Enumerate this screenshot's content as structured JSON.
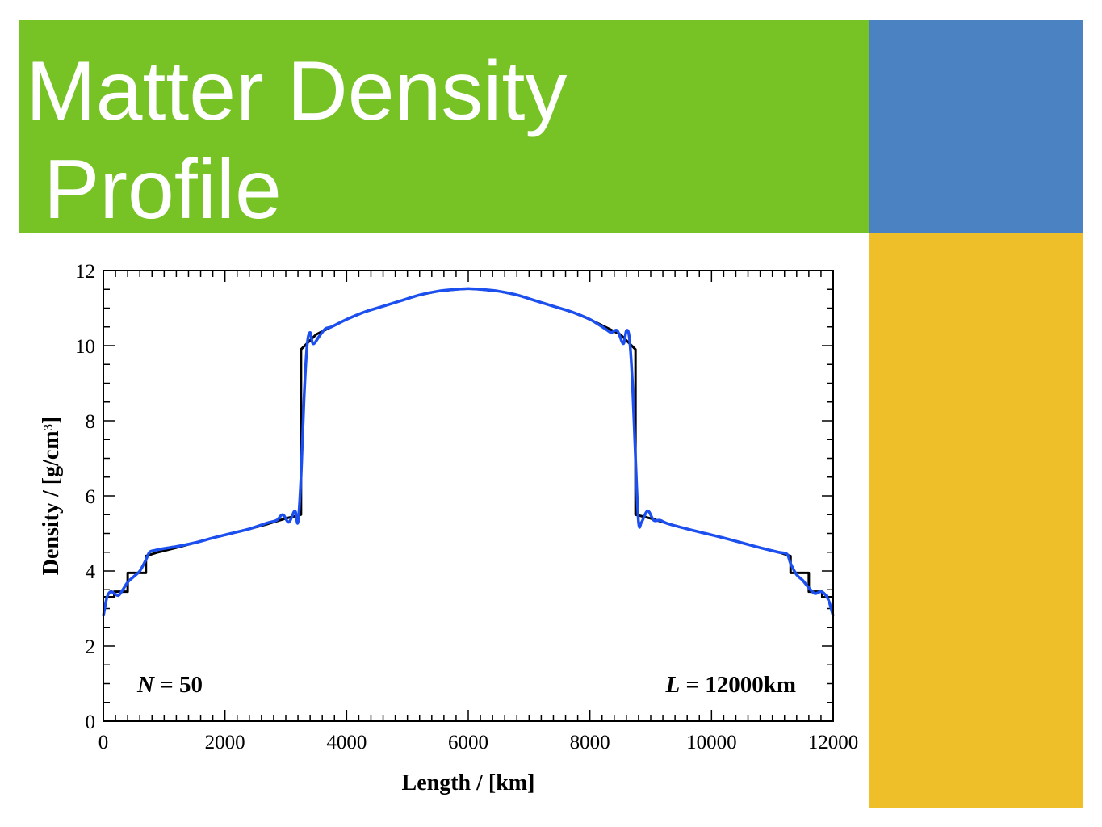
{
  "slide": {
    "title_line1": "Matter Density",
    "title_line2": "Profile",
    "colors": {
      "green": "#77c325",
      "blue": "#4a82c2",
      "gold": "#eebf29"
    }
  },
  "chart_data": {
    "type": "line",
    "title": "",
    "xlabel": "Length / [km]",
    "ylabel": "Density / [g/cm³]",
    "xlim": [
      0,
      12000
    ],
    "ylim": [
      0,
      12
    ],
    "x_ticks": [
      0,
      2000,
      4000,
      6000,
      8000,
      10000,
      12000
    ],
    "x_tick_labels": [
      "0",
      "2000",
      "4000",
      "6000",
      "8000",
      "10000",
      "12000"
    ],
    "y_ticks": [
      0,
      2,
      4,
      6,
      8,
      10,
      12
    ],
    "y_tick_labels": [
      "0",
      "2",
      "4",
      "6",
      "8",
      "10",
      "12"
    ],
    "annotations": {
      "left": {
        "italic": "N",
        "rest": " = 50"
      },
      "right": {
        "italic": "L",
        "rest": " = 12000km"
      }
    },
    "grid": false,
    "series": [
      {
        "color": "#000000",
        "style": "step",
        "x": [
          0,
          180,
          180,
          400,
          400,
          700,
          700,
          900,
          1200,
          1500,
          1800,
          2100,
          2400,
          2700,
          3000,
          3250,
          3250,
          3500,
          3750,
          4000,
          4300,
          4600,
          4900,
          5200,
          5500,
          5800,
          6000,
          6200,
          6500,
          6800,
          7100,
          7400,
          7700,
          8000,
          8250,
          8500,
          8750,
          8750,
          9000,
          9300,
          9600,
          9900,
          10200,
          10500,
          10800,
          11100,
          11300,
          11300,
          11600,
          11600,
          11820,
          11820,
          12000
        ],
        "y": [
          3.3,
          3.3,
          3.45,
          3.45,
          3.95,
          3.95,
          4.4,
          4.5,
          4.62,
          4.75,
          4.88,
          5.0,
          5.12,
          5.25,
          5.4,
          5.5,
          9.9,
          10.3,
          10.5,
          10.7,
          10.9,
          11.05,
          11.2,
          11.35,
          11.45,
          11.5,
          11.52,
          11.5,
          11.45,
          11.35,
          11.2,
          11.05,
          10.9,
          10.7,
          10.5,
          10.3,
          9.9,
          5.5,
          5.4,
          5.25,
          5.12,
          5.0,
          4.88,
          4.75,
          4.62,
          4.5,
          4.4,
          3.95,
          3.95,
          3.45,
          3.45,
          3.3,
          3.3
        ]
      },
      {
        "color": "#1c4ff0",
        "style": "smooth",
        "x": [
          0,
          60,
          120,
          180,
          250,
          320,
          400,
          500,
          600,
          700,
          760,
          850,
          1000,
          1200,
          1500,
          1800,
          2100,
          2400,
          2700,
          2850,
          2950,
          3050,
          3150,
          3200,
          3250,
          3300,
          3350,
          3400,
          3450,
          3550,
          3650,
          3750,
          4000,
          4300,
          4600,
          4900,
          5200,
          5500,
          5800,
          6000,
          6200,
          6500,
          6800,
          7100,
          7400,
          7700,
          8000,
          8250,
          8350,
          8450,
          8550,
          8600,
          8650,
          8700,
          8750,
          8800,
          8850,
          8950,
          9050,
          9150,
          9300,
          9600,
          9900,
          10200,
          10500,
          10800,
          11100,
          11240,
          11300,
          11400,
          11500,
          11600,
          11700,
          11800,
          11880,
          11940,
          12000
        ],
        "y": [
          2.8,
          3.3,
          3.45,
          3.4,
          3.35,
          3.5,
          3.7,
          3.85,
          4.0,
          4.3,
          4.5,
          4.55,
          4.6,
          4.65,
          4.75,
          4.88,
          5.0,
          5.12,
          5.28,
          5.35,
          5.5,
          5.3,
          5.6,
          5.3,
          6.5,
          8.6,
          10.0,
          10.35,
          10.05,
          10.25,
          10.45,
          10.5,
          10.7,
          10.9,
          11.05,
          11.2,
          11.35,
          11.45,
          11.5,
          11.52,
          11.5,
          11.45,
          11.35,
          11.2,
          11.05,
          10.9,
          10.7,
          10.45,
          10.35,
          10.4,
          10.05,
          10.4,
          10.2,
          9.0,
          7.0,
          5.3,
          5.3,
          5.6,
          5.35,
          5.35,
          5.25,
          5.12,
          5.0,
          4.88,
          4.75,
          4.62,
          4.5,
          4.45,
          4.2,
          3.9,
          3.75,
          3.55,
          3.4,
          3.45,
          3.35,
          3.15,
          2.8
        ]
      }
    ]
  }
}
